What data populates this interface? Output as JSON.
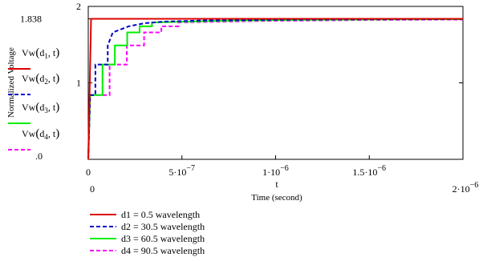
{
  "chart_data": {
    "type": "line",
    "xlabel": "Time (second)",
    "ylabel": "Normalized Voltage",
    "x_axis_var": "t",
    "xlim": [
      0,
      2e-06
    ],
    "ylim": [
      0,
      2
    ],
    "y_limit_labels": [
      "2",
      ".0"
    ],
    "y_ticks": [
      {
        "value": 1,
        "label": "1"
      },
      {
        "value": 1.838,
        "label": "1.838"
      }
    ],
    "x_tick_labels": [
      {
        "value": 0,
        "mant": "0",
        "exp": ""
      },
      {
        "value": 5e-07,
        "mant": "5·10",
        "exp": "−7"
      },
      {
        "value": 1e-06,
        "mant": "1·10",
        "exp": "−6"
      },
      {
        "value": 1.5e-06,
        "mant": "1.5·10",
        "exp": "−6"
      }
    ],
    "x_limit_labels": [
      {
        "value": 0,
        "mant": "0",
        "exp": ""
      },
      {
        "value": 2e-06,
        "mant": "2·10",
        "exp": "−6"
      }
    ],
    "left_trace_labels": [
      {
        "fn": "Vw",
        "d": "d",
        "sub": "1",
        "arg": "t"
      },
      {
        "fn": "Vw",
        "d": "d",
        "sub": "2",
        "arg": "t"
      },
      {
        "fn": "Vw",
        "d": "d",
        "sub": "3",
        "arg": "t"
      },
      {
        "fn": "Vw",
        "d": "d",
        "sub": "4",
        "arg": "t"
      }
    ],
    "series": [
      {
        "name": "d1 = 0.5 wavelength",
        "color": "#dd0000",
        "dash": "solid",
        "points": [
          [
            0,
            0
          ],
          [
            1.5e-08,
            1.838
          ],
          [
            2e-06,
            1.838
          ]
        ]
      },
      {
        "name": "d2 = 30.5 wavelength",
        "color": "#0000cc",
        "dash": "dashed",
        "points": [
          [
            0,
            0
          ],
          [
            1e-08,
            0.84
          ],
          [
            3.8e-08,
            0.84
          ],
          [
            3.8e-08,
            1.24
          ],
          [
            1.04e-07,
            1.24
          ],
          [
            1.04e-07,
            1.49
          ],
          [
            1.31e-07,
            1.66
          ],
          [
            2.17e-07,
            1.74
          ],
          [
            3e-07,
            1.78
          ],
          [
            4e-07,
            1.8
          ],
          [
            6e-07,
            1.815
          ],
          [
            1e-06,
            1.826
          ],
          [
            1.5e-06,
            1.832
          ],
          [
            2e-06,
            1.835
          ]
        ]
      },
      {
        "name": "d3 = 60.5 wavelength",
        "color": "#00ee00",
        "dash": "solid",
        "points": [
          [
            0,
            0
          ],
          [
            1e-08,
            0.84
          ],
          [
            7.6e-08,
            0.84
          ],
          [
            7.6e-08,
            1.24
          ],
          [
            1.42e-07,
            1.24
          ],
          [
            1.42e-07,
            1.49
          ],
          [
            2.08e-07,
            1.49
          ],
          [
            2.08e-07,
            1.66
          ],
          [
            2.74e-07,
            1.66
          ],
          [
            2.74e-07,
            1.74
          ],
          [
            3.4e-07,
            1.74
          ],
          [
            3.4e-07,
            1.79
          ],
          [
            5e-07,
            1.8
          ],
          [
            8e-07,
            1.815
          ],
          [
            1.2e-06,
            1.825
          ],
          [
            1.6e-06,
            1.83
          ],
          [
            2e-06,
            1.832
          ]
        ]
      },
      {
        "name": "d4 = 90.5 wavelength",
        "color": "#ff00ff",
        "dash": "dashed",
        "points": [
          [
            0,
            0
          ],
          [
            1e-08,
            0.84
          ],
          [
            1.14e-07,
            0.84
          ],
          [
            1.14e-07,
            1.24
          ],
          [
            2.06e-07,
            1.24
          ],
          [
            2.06e-07,
            1.49
          ],
          [
            2.98e-07,
            1.49
          ],
          [
            2.98e-07,
            1.66
          ],
          [
            3.9e-07,
            1.66
          ],
          [
            3.9e-07,
            1.74
          ],
          [
            4.82e-07,
            1.74
          ],
          [
            4.82e-07,
            1.79
          ],
          [
            7e-07,
            1.8
          ],
          [
            1e-06,
            1.812
          ],
          [
            1.4e-06,
            1.82
          ],
          [
            1.8e-06,
            1.826
          ],
          [
            2e-06,
            1.828
          ]
        ]
      }
    ]
  }
}
